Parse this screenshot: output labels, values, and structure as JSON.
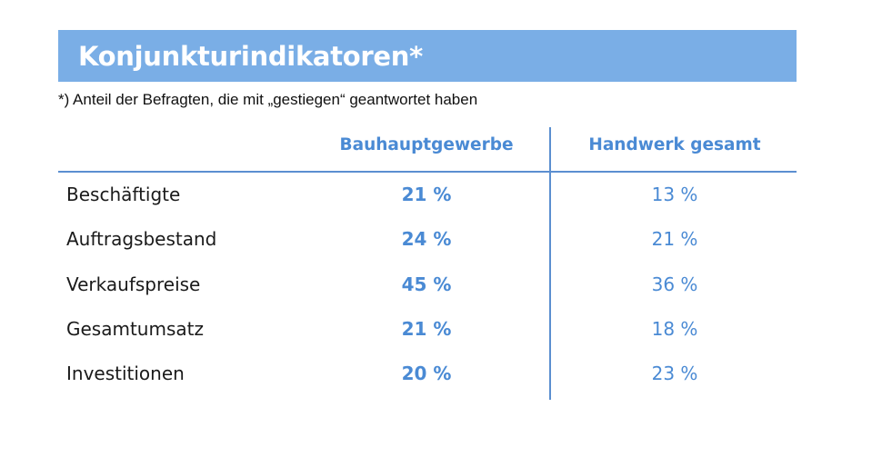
{
  "title": "Konjunkturindikatoren*",
  "footnote": "*) Anteil der Befragten, die mit „gestiegen“ geantwortet haben",
  "table": {
    "columns": [
      "Bauhauptgewerbe",
      "Handwerk gesamt"
    ],
    "rows": [
      {
        "label": "Beschäftigte",
        "bauhauptgewerbe": "21 %",
        "handwerk_gesamt": "13 %"
      },
      {
        "label": "Auftragsbestand",
        "bauhauptgewerbe": "24 %",
        "handwerk_gesamt": "21 %"
      },
      {
        "label": "Verkaufspreise",
        "bauhauptgewerbe": "45 %",
        "handwerk_gesamt": "36 %"
      },
      {
        "label": "Gesamtumsatz",
        "bauhauptgewerbe": "21 %",
        "handwerk_gesamt": "18 %"
      },
      {
        "label": "Investitionen",
        "bauhauptgewerbe": "20 %",
        "handwerk_gesamt": "23 %"
      }
    ]
  },
  "colors": {
    "title_background": "#7aaee6",
    "accent_text": "#4a8ad4",
    "rule": "#5b8fd0"
  }
}
